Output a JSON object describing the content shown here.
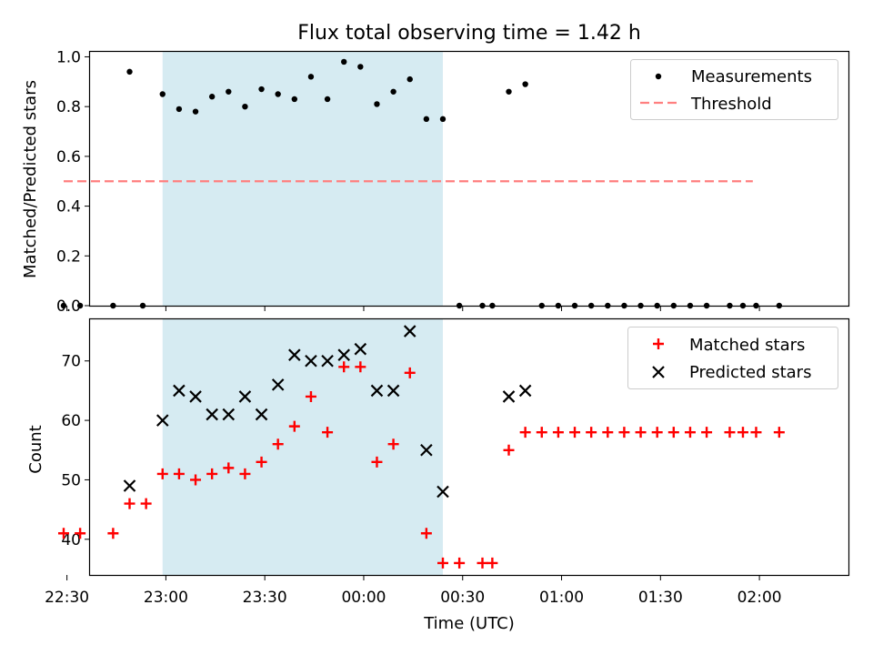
{
  "title": "Flux total observing time = 1.42 h",
  "xlabel": "Time (UTC)",
  "xticks": [
    "22:30",
    "23:00",
    "23:30",
    "00:00",
    "00:30",
    "01:00",
    "01:30",
    "02:00"
  ],
  "top_panel": {
    "ylabel": "Matched/Predicted stars",
    "legend": [
      "Measurements",
      "Threshold"
    ]
  },
  "bottom_panel": {
    "ylabel": "Count",
    "legend": [
      "Matched stars",
      "Predicted stars"
    ]
  },
  "colors": {
    "measurements": "#000000",
    "threshold": "#ff7f7f",
    "matched": "#ff0000",
    "predicted": "#000000",
    "shade": "#add8e6"
  },
  "chart_data": [
    {
      "type": "scatter",
      "panel": "top",
      "ylabel": "Matched/Predicted stars",
      "ylim": [
        0,
        1.02
      ],
      "yticks": [
        0.0,
        0.2,
        0.4,
        0.6,
        0.8,
        1.0
      ],
      "xlim_minutes": [
        -23,
        207
      ],
      "shaded_interval_minutes": [
        -1,
        84
      ],
      "threshold": {
        "name": "Threshold",
        "y": 0.5,
        "x_range_minutes": [
          -31,
          178
        ]
      },
      "legend_position": "top-right",
      "series": [
        {
          "name": "Measurements",
          "x_minutes": [
            -31,
            -26,
            -16,
            -7,
            -11,
            -1,
            4,
            9,
            14,
            19,
            24,
            29,
            34,
            39,
            44,
            49,
            54,
            59,
            64,
            69,
            74,
            79,
            84,
            89,
            96,
            99,
            104,
            109,
            114,
            119,
            124,
            129,
            134,
            139,
            144,
            149,
            154,
            159,
            164,
            171,
            175,
            179,
            186
          ],
          "y": [
            0.0,
            0.0,
            0.0,
            0.0,
            0.94,
            0.85,
            0.79,
            0.78,
            0.84,
            0.86,
            0.8,
            0.87,
            0.85,
            0.83,
            0.92,
            0.83,
            0.98,
            0.96,
            0.81,
            0.86,
            0.91,
            0.75,
            0.75,
            0.0,
            0.0,
            0.0,
            0.86,
            0.89,
            0.0,
            0.0,
            0.0,
            0.0,
            0.0,
            0.0,
            0.0,
            0.0,
            0.0,
            0.0,
            0.0,
            0.0,
            0.0,
            0.0,
            0.0
          ]
        }
      ]
    },
    {
      "type": "scatter",
      "panel": "bottom",
      "ylabel": "Count",
      "ylim": [
        34,
        77
      ],
      "yticks": [
        40,
        50,
        60,
        70
      ],
      "xlim_minutes": [
        -23,
        207
      ],
      "shaded_interval_minutes": [
        -1,
        84
      ],
      "legend_position": "top-right",
      "series": [
        {
          "name": "Matched stars",
          "marker": "plus",
          "x_minutes": [
            -31,
            -26,
            -16,
            -11,
            -6,
            -1,
            4,
            9,
            14,
            19,
            24,
            29,
            34,
            39,
            44,
            49,
            54,
            59,
            64,
            69,
            74,
            79,
            84,
            89,
            96,
            99,
            104,
            109,
            114,
            119,
            124,
            129,
            134,
            139,
            144,
            149,
            154,
            159,
            164,
            171,
            175,
            179,
            186
          ],
          "y": [
            41,
            41,
            41,
            46,
            46,
            51,
            51,
            50,
            51,
            52,
            51,
            53,
            56,
            59,
            64,
            58,
            69,
            69,
            53,
            56,
            68,
            41,
            36,
            36,
            36,
            36,
            55,
            58,
            58,
            58,
            58,
            58,
            58,
            58,
            58,
            58,
            58,
            58,
            58,
            58,
            58,
            58,
            58
          ]
        },
        {
          "name": "Predicted stars",
          "marker": "x",
          "x_minutes": [
            -11,
            -1,
            4,
            9,
            14,
            19,
            24,
            29,
            34,
            39,
            44,
            49,
            54,
            59,
            64,
            69,
            74,
            79,
            84,
            104,
            109
          ],
          "y": [
            49,
            60,
            65,
            64,
            61,
            61,
            64,
            61,
            66,
            71,
            70,
            70,
            71,
            72,
            65,
            65,
            75,
            55,
            48,
            64,
            65
          ]
        }
      ]
    }
  ]
}
